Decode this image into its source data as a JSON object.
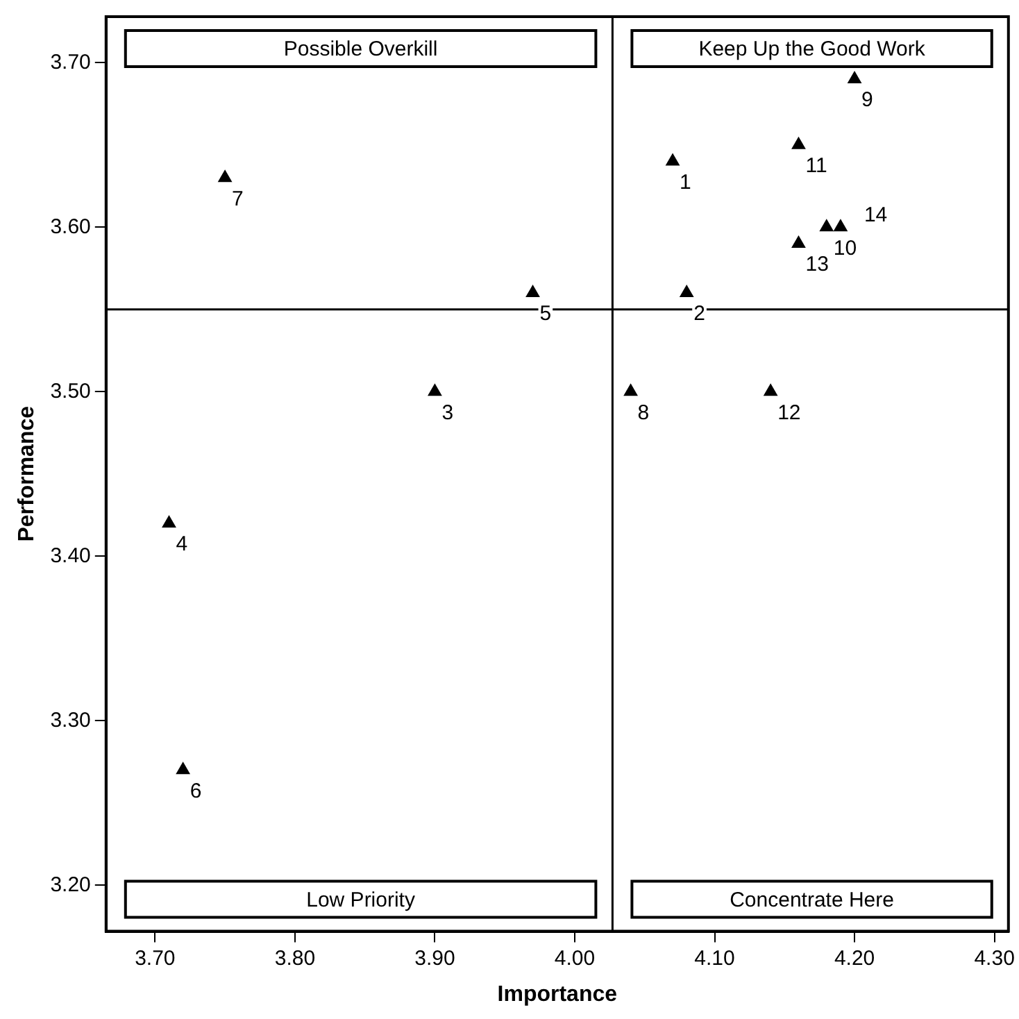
{
  "chart_data": {
    "type": "scatter",
    "xlabel": "Importance",
    "ylabel": "Performance",
    "marker": "triangle",
    "x": [
      4.07,
      4.08,
      3.9,
      3.71,
      3.97,
      3.72,
      3.75,
      4.04,
      4.2,
      4.18,
      4.16,
      4.14,
      4.16,
      4.19
    ],
    "series": [
      {
        "color": "#000000",
        "values": [
          3.64,
          3.56,
          3.5,
          3.42,
          3.56,
          3.27,
          3.63,
          3.5,
          3.69,
          3.6,
          3.65,
          3.5,
          3.59,
          3.6
        ]
      }
    ],
    "xlim": [
      3.665,
      4.31
    ],
    "xticks": [
      {
        "value": 3.7,
        "label": "3.70"
      },
      {
        "value": 3.8,
        "label": "3.80"
      },
      {
        "value": 3.9,
        "label": "3.90"
      },
      {
        "value": 4.0,
        "label": "4.00"
      },
      {
        "value": 4.1,
        "label": "4.10"
      },
      {
        "value": 4.2,
        "label": "4.20"
      },
      {
        "value": 4.3,
        "label": "4.30"
      }
    ],
    "ylim": [
      3.172,
      3.728
    ],
    "yticks": [
      {
        "value": 3.2,
        "label": "3.20"
      },
      {
        "value": 3.3,
        "label": "3.30"
      },
      {
        "value": 3.4,
        "label": "3.40"
      },
      {
        "value": 3.5,
        "label": "3.50"
      },
      {
        "value": 3.6,
        "label": "3.60"
      },
      {
        "value": 3.7,
        "label": "3.70"
      }
    ],
    "ref_lines": [
      {
        "axis": "x",
        "value": 4.027
      },
      {
        "axis": "y",
        "value": 3.55
      }
    ],
    "annotations": [
      "Possible Overkill",
      "Keep Up the Good Work",
      "Low Priority",
      "Concentrate Here",
      {
        "text": "1",
        "x": 4.07,
        "y": 3.64
      },
      {
        "text": "2",
        "x": 4.08,
        "y": 3.56
      },
      {
        "text": "3",
        "x": 3.9,
        "y": 3.5
      },
      {
        "text": "4",
        "x": 3.71,
        "y": 3.42
      },
      {
        "text": "5",
        "x": 3.97,
        "y": 3.56
      },
      {
        "text": "6",
        "x": 3.72,
        "y": 3.27
      },
      {
        "text": "7",
        "x": 3.75,
        "y": 3.63
      },
      {
        "text": "8",
        "x": 4.04,
        "y": 3.5
      },
      {
        "text": "9",
        "x": 4.2,
        "y": 3.69
      },
      {
        "text": "10",
        "x": 4.18,
        "y": 3.6
      },
      {
        "text": "11",
        "x": 4.16,
        "y": 3.65
      },
      {
        "text": "12",
        "x": 4.14,
        "y": 3.5
      },
      {
        "text": "13",
        "x": 4.16,
        "y": 3.59
      },
      {
        "text": "14",
        "x": 4.19,
        "y": 3.6
      }
    ],
    "grid": false,
    "legend": false
  }
}
